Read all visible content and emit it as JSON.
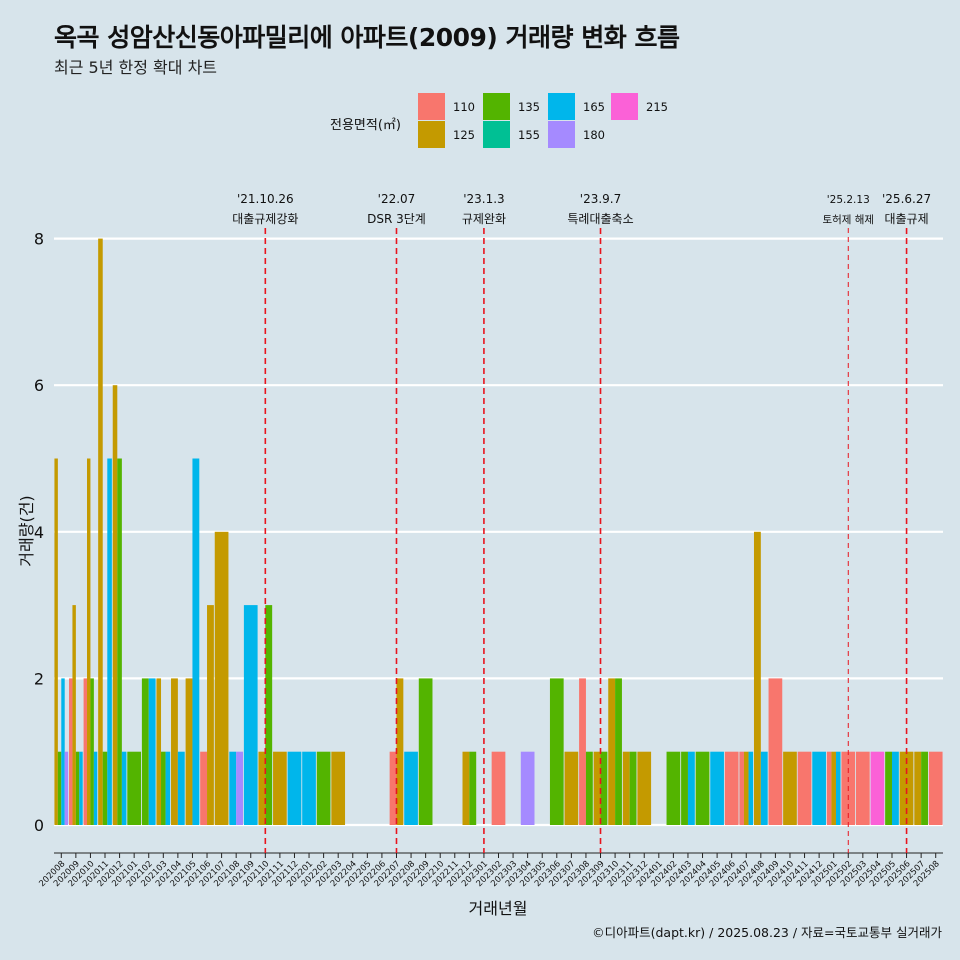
{
  "title": "옥곡 성암산신동아파밀리에 아파트(2009) 거래량 변화 흐름",
  "subtitle": "최근 5년 한정 확대 차트",
  "caption": "©디아파트(dapt.kr) / 2025.08.23 / 자료=국토교통부 실거래가",
  "legend": {
    "title": "전용면적(㎡)",
    "items": [
      {
        "label": "110",
        "color": "#f8766d"
      },
      {
        "label": "125",
        "color": "#c49a00"
      },
      {
        "label": "135",
        "color": "#53b400"
      },
      {
        "label": "155",
        "color": "#00c094"
      },
      {
        "label": "165",
        "color": "#00b6eb"
      },
      {
        "label": "180",
        "color": "#a58aff"
      },
      {
        "label": "215",
        "color": "#fb61d7"
      }
    ]
  },
  "chart_data": {
    "type": "bar",
    "title": "옥곡 성암산신동아파밀리에 아파트(2009) 거래량 변화 흐름",
    "xlabel": "거래년월",
    "ylabel": "거래량(건)",
    "ylim": [
      0,
      8.5
    ],
    "yticks": [
      0,
      2,
      4,
      6,
      8
    ],
    "categories": [
      "202008",
      "202009",
      "202010",
      "202011",
      "202012",
      "202101",
      "202102",
      "202103",
      "202104",
      "202105",
      "202106",
      "202107",
      "202108",
      "202109",
      "202110",
      "202111",
      "202112",
      "202201",
      "202202",
      "202203",
      "202204",
      "202205",
      "202206",
      "202207",
      "202208",
      "202209",
      "202210",
      "202211",
      "202212",
      "202301",
      "202302",
      "202303",
      "202304",
      "202305",
      "202306",
      "202307",
      "202308",
      "202309",
      "202310",
      "202311",
      "202312",
      "202401",
      "202402",
      "202403",
      "202404",
      "202405",
      "202406",
      "202407",
      "202408",
      "202409",
      "202410",
      "202411",
      "202412",
      "202501",
      "202502",
      "202503",
      "202504",
      "202505",
      "202506",
      "202507",
      "202508"
    ],
    "series": [
      {
        "name": "110",
        "values": [
          0,
          2,
          2,
          0,
          0,
          0,
          0,
          0,
          0,
          0,
          1,
          0,
          0,
          0,
          0,
          0,
          0,
          0,
          0,
          0,
          0,
          0,
          0,
          1,
          0,
          0,
          0,
          0,
          0,
          0,
          1,
          0,
          0,
          0,
          0,
          0,
          2,
          0,
          0,
          0,
          0,
          0,
          0,
          0,
          0,
          0,
          1,
          1,
          0,
          2,
          0,
          1,
          0,
          1,
          1,
          1,
          0,
          0,
          0,
          0,
          1
        ]
      },
      {
        "name": "125",
        "values": [
          5,
          3,
          5,
          8,
          6,
          0,
          0,
          2,
          2,
          2,
          3,
          4,
          0,
          0,
          1,
          1,
          0,
          0,
          0,
          1,
          0,
          0,
          0,
          2,
          0,
          0,
          0,
          0,
          1,
          0,
          0,
          0,
          0,
          0,
          0,
          1,
          0,
          1,
          2,
          1,
          1,
          0,
          0,
          0,
          0,
          0,
          0,
          1,
          4,
          0,
          1,
          0,
          0,
          1,
          0,
          0,
          0,
          0,
          1,
          1,
          0
        ]
      },
      {
        "name": "135",
        "values": [
          1,
          1,
          2,
          1,
          5,
          1,
          2,
          1,
          0,
          0,
          0,
          0,
          0,
          0,
          3,
          0,
          0,
          0,
          1,
          0,
          0,
          0,
          0,
          0,
          0,
          2,
          0,
          0,
          1,
          0,
          0,
          0,
          0,
          0,
          2,
          0,
          1,
          1,
          2,
          1,
          0,
          0,
          1,
          1,
          1,
          0,
          0,
          0,
          0,
          0,
          0,
          0,
          0,
          0,
          0,
          0,
          0,
          1,
          0,
          1,
          0
        ]
      },
      {
        "name": "155",
        "values": [
          0,
          0,
          0,
          0,
          0,
          0,
          0,
          0,
          0,
          0,
          0,
          0,
          0,
          0,
          0,
          0,
          0,
          0,
          0,
          0,
          0,
          0,
          0,
          0,
          0,
          0,
          0,
          0,
          0,
          0,
          0,
          0,
          0,
          0,
          0,
          0,
          0,
          0,
          0,
          0,
          0,
          0,
          0,
          0,
          0,
          0,
          0,
          0,
          0,
          0,
          0,
          0,
          0,
          0,
          0,
          0,
          0,
          0,
          0,
          0,
          0
        ]
      },
      {
        "name": "165",
        "values": [
          2,
          1,
          1,
          5,
          1,
          0,
          2,
          1,
          1,
          5,
          0,
          0,
          1,
          3,
          0,
          0,
          1,
          1,
          0,
          0,
          0,
          0,
          0,
          0,
          1,
          0,
          0,
          0,
          0,
          0,
          0,
          0,
          0,
          0,
          0,
          0,
          0,
          0,
          0,
          0,
          0,
          0,
          0,
          1,
          0,
          1,
          0,
          1,
          1,
          0,
          0,
          0,
          1,
          1,
          0,
          0,
          0,
          1,
          0,
          0,
          0
        ]
      },
      {
        "name": "180",
        "values": [
          1,
          0,
          0,
          0,
          0,
          0,
          0,
          0,
          0,
          0,
          0,
          0,
          1,
          0,
          0,
          0,
          0,
          0,
          0,
          0,
          0,
          0,
          0,
          0,
          0,
          0,
          0,
          0,
          0,
          0,
          0,
          0,
          1,
          0,
          0,
          0,
          0,
          0,
          0,
          0,
          0,
          0,
          0,
          0,
          0,
          0,
          0,
          0,
          0,
          0,
          0,
          0,
          0,
          0,
          0,
          0,
          0,
          0,
          0,
          0,
          0
        ]
      },
      {
        "name": "215",
        "values": [
          0,
          0,
          0,
          0,
          0,
          0,
          0,
          0,
          0,
          0,
          0,
          0,
          0,
          0,
          0,
          0,
          0,
          0,
          0,
          0,
          0,
          0,
          0,
          0,
          0,
          0,
          0,
          0,
          0,
          0,
          0,
          0,
          0,
          0,
          0,
          0,
          0,
          0,
          0,
          0,
          0,
          0,
          0,
          0,
          0,
          0,
          0,
          0,
          0,
          0,
          0,
          0,
          0,
          0,
          0,
          0,
          1,
          0,
          0,
          0,
          0
        ]
      }
    ],
    "annotations": [
      {
        "date": "'21.10.26",
        "label": "대출규제강화",
        "x": "202110",
        "style": "thick"
      },
      {
        "date": "'22.07",
        "label": "DSR 3단계",
        "x": "202207",
        "style": "thick"
      },
      {
        "date": "'23.1.3",
        "label": "규제완화",
        "x": "202301",
        "style": "thick"
      },
      {
        "date": "'23.9.7",
        "label": "특례대출축소",
        "x": "202309",
        "style": "thick"
      },
      {
        "date": "'25.2.13",
        "label": "토허제 해제",
        "x": "202502",
        "style": "thin"
      },
      {
        "date": "'25.6.27",
        "label": "대출규제",
        "x": "202506",
        "style": "thick"
      }
    ]
  }
}
